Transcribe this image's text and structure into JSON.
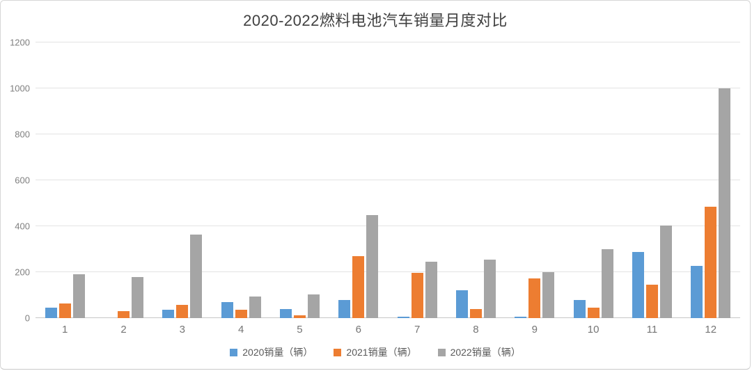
{
  "chart_data": {
    "type": "bar",
    "title": "2020-2022燃料电池汽车销量月度对比",
    "categories": [
      "1",
      "2",
      "3",
      "4",
      "5",
      "6",
      "7",
      "8",
      "9",
      "10",
      "11",
      "12"
    ],
    "series": [
      {
        "name": "2020销量（辆）",
        "year": "2020",
        "color": "#5B9BD5",
        "values": [
          45,
          0,
          35,
          70,
          40,
          80,
          5,
          120,
          5,
          80,
          288,
          228
        ]
      },
      {
        "name": "2021销量（辆）",
        "year": "2021",
        "color": "#ED7D31",
        "values": [
          64,
          29,
          57,
          36,
          12,
          270,
          196,
          38,
          174,
          47,
          145,
          486
        ]
      },
      {
        "name": "2022销量（辆）",
        "year": "2022",
        "color": "#A5A5A5",
        "values": [
          190,
          178,
          365,
          94,
          103,
          450,
          245,
          255,
          200,
          300,
          402,
          1000
        ]
      }
    ],
    "xlabel": "",
    "ylabel": "",
    "ylim": [
      0,
      1200
    ],
    "ytick_step": 200,
    "ytick_labels": [
      "0",
      "200",
      "400",
      "600",
      "800",
      "1000",
      "1200"
    ],
    "grid": true,
    "legend_position": "bottom",
    "plot_background": "#ffffff",
    "gridline_color": "#e3e3e3",
    "axis_line_color": "#c6c6c6",
    "label_color": "#7f7f7f",
    "title_color": "#404040"
  }
}
